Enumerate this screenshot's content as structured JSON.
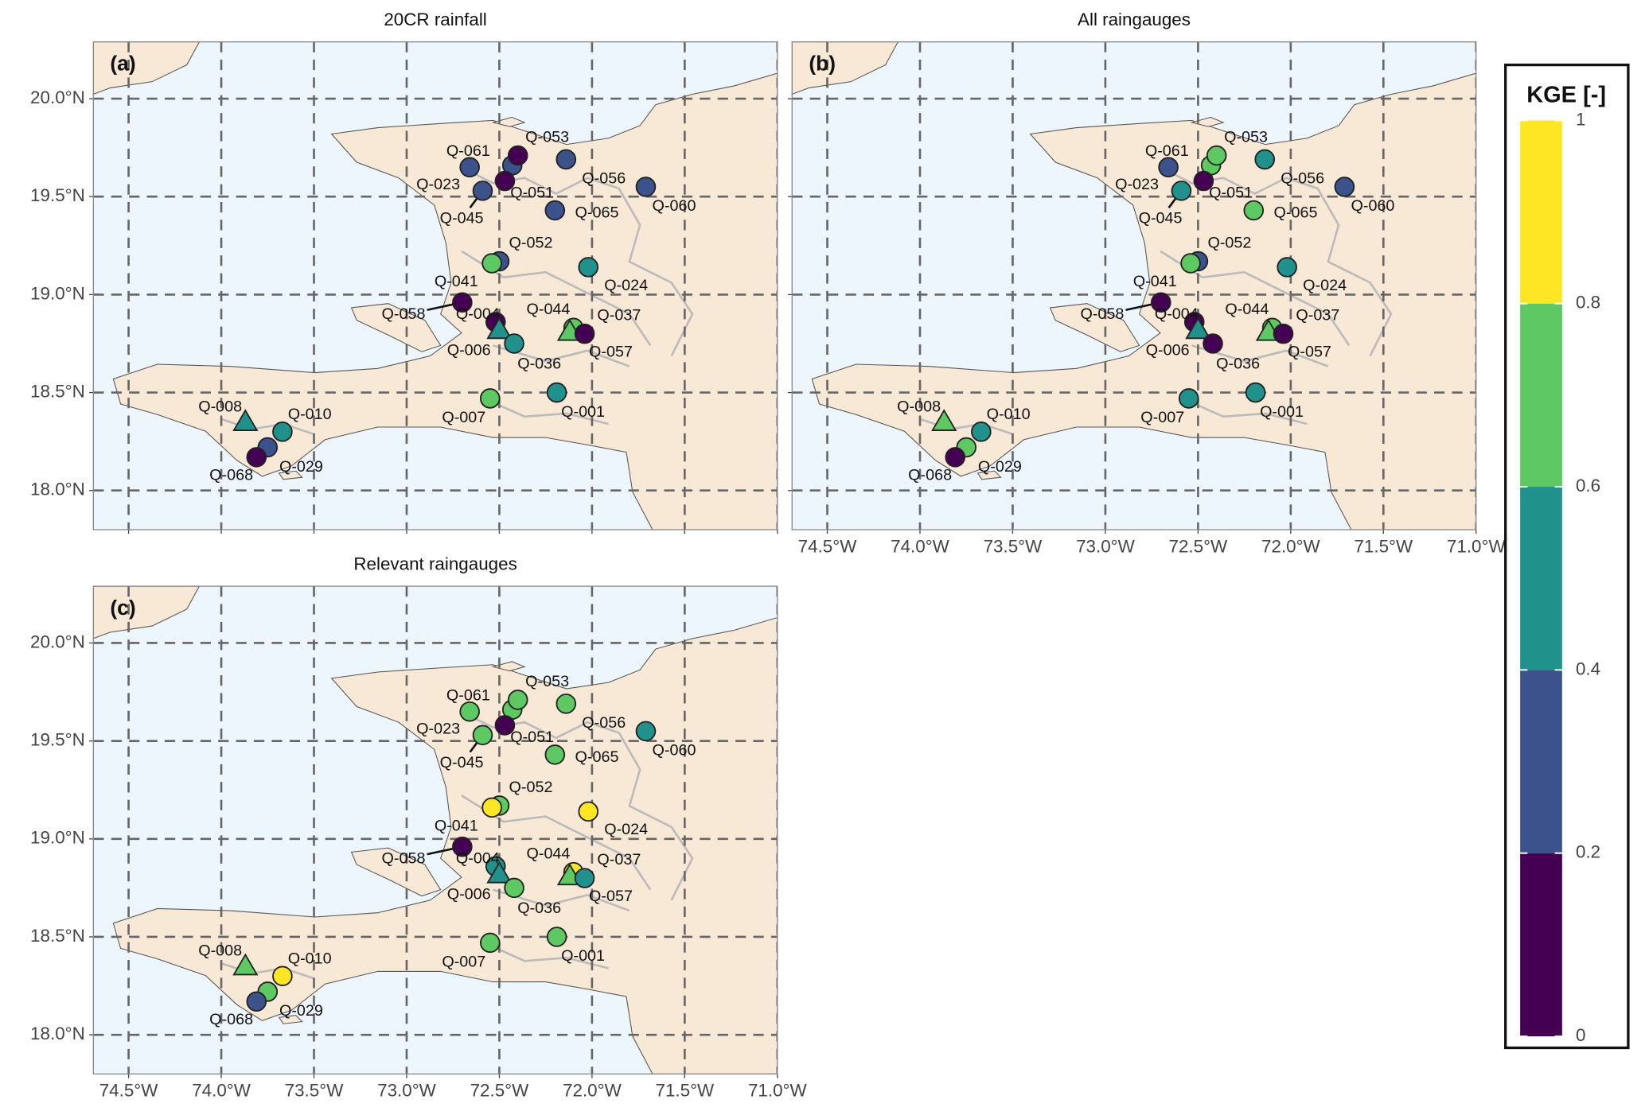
{
  "map": {
    "xlim": [
      -74.69,
      -71.0
    ],
    "ylim": [
      17.8,
      20.29
    ],
    "xticks": [
      {
        "value": -74.5,
        "label": "74.5°W"
      },
      {
        "value": -74.0,
        "label": "74.0°W"
      },
      {
        "value": -73.5,
        "label": "73.5°W"
      },
      {
        "value": -73.0,
        "label": "73.0°W"
      },
      {
        "value": -72.5,
        "label": "72.5°W"
      },
      {
        "value": -72.0,
        "label": "72.0°W"
      },
      {
        "value": -71.5,
        "label": "71.5°W"
      },
      {
        "value": -71.0,
        "label": "71.0°W"
      }
    ],
    "yticks": [
      {
        "value": 18.0,
        "label": "18.0°N"
      },
      {
        "value": 18.5,
        "label": "18.5°N"
      },
      {
        "value": 19.0,
        "label": "19.0°N"
      },
      {
        "value": 19.5,
        "label": "19.5°N"
      },
      {
        "value": 20.0,
        "label": "20.0°N"
      }
    ],
    "grid": true
  },
  "stations": [
    {
      "label": "Q-061",
      "lon": -72.43,
      "lat": 19.66,
      "marker": "circle"
    },
    {
      "label": "Q-023",
      "lon": -72.66,
      "lat": 19.65,
      "marker": "circle"
    },
    {
      "label": "Q-053",
      "lon": -72.4,
      "lat": 19.71,
      "marker": "circle"
    },
    {
      "label": "Q-051",
      "lon": -72.47,
      "lat": 19.58,
      "marker": "circle"
    },
    {
      "label": "Q-056",
      "lon": -72.14,
      "lat": 19.69,
      "marker": "circle"
    },
    {
      "label": "Q-060",
      "lon": -71.71,
      "lat": 19.55,
      "marker": "circle"
    },
    {
      "label": "Q-045",
      "lon": -72.59,
      "lat": 19.53,
      "marker": "circle"
    },
    {
      "label": "Q-065",
      "lon": -72.2,
      "lat": 19.43,
      "marker": "circle"
    },
    {
      "label": "Q-052",
      "lon": -72.5,
      "lat": 19.17,
      "marker": "circle"
    },
    {
      "label": "Q-041",
      "lon": -72.54,
      "lat": 19.16,
      "marker": "circle"
    },
    {
      "label": "Q-024",
      "lon": -72.02,
      "lat": 19.14,
      "marker": "circle"
    },
    {
      "label": "Q-058",
      "lon": -72.7,
      "lat": 18.96,
      "marker": "circle"
    },
    {
      "label": "Q-004",
      "lon": -72.52,
      "lat": 18.86,
      "marker": "circle"
    },
    {
      "label": "Q-006",
      "lon": -72.5,
      "lat": 18.82,
      "marker": "triangle"
    },
    {
      "label": "Q-044",
      "lon": -72.1,
      "lat": 18.83,
      "marker": "circle"
    },
    {
      "label": "Q-037",
      "lon": -72.12,
      "lat": 18.81,
      "marker": "triangle"
    },
    {
      "label": "Q-057",
      "lon": -72.04,
      "lat": 18.8,
      "marker": "circle"
    },
    {
      "label": "Q-036",
      "lon": -72.42,
      "lat": 18.75,
      "marker": "circle"
    },
    {
      "label": "Q-007",
      "lon": -72.55,
      "lat": 18.47,
      "marker": "circle"
    },
    {
      "label": "Q-001",
      "lon": -72.19,
      "lat": 18.5,
      "marker": "circle"
    },
    {
      "label": "Q-008",
      "lon": -73.87,
      "lat": 18.35,
      "marker": "triangle"
    },
    {
      "label": "Q-010",
      "lon": -73.67,
      "lat": 18.3,
      "marker": "circle"
    },
    {
      "label": "Q-029",
      "lon": -73.75,
      "lat": 18.22,
      "marker": "circle"
    },
    {
      "label": "Q-068",
      "lon": -73.81,
      "lat": 18.17,
      "marker": "circle"
    }
  ],
  "panels": [
    {
      "tag": "(a)",
      "title": "20CR rainfall",
      "kge": [
        0.3,
        0.3,
        0.1,
        0.1,
        0.3,
        0.3,
        0.3,
        0.3,
        0.3,
        0.7,
        0.5,
        0.1,
        0.1,
        0.5,
        0.7,
        0.7,
        0.1,
        0.5,
        0.7,
        0.5,
        0.5,
        0.5,
        0.3,
        0.1
      ]
    },
    {
      "tag": "(b)",
      "title": "All raingauges",
      "kge": [
        0.7,
        0.3,
        0.7,
        0.1,
        0.5,
        0.3,
        0.5,
        0.7,
        0.3,
        0.7,
        0.5,
        0.1,
        0.1,
        0.5,
        0.7,
        0.7,
        0.1,
        0.1,
        0.5,
        0.5,
        0.7,
        0.5,
        0.7,
        0.1
      ]
    },
    {
      "tag": "(c)",
      "title": "Relevant raingauges",
      "kge": [
        0.7,
        0.7,
        0.7,
        0.1,
        0.7,
        0.5,
        0.7,
        0.7,
        0.7,
        0.9,
        0.9,
        0.1,
        0.5,
        0.5,
        0.9,
        0.7,
        0.5,
        0.7,
        0.7,
        0.7,
        0.7,
        0.9,
        0.7,
        0.3
      ]
    }
  ],
  "colorbar": {
    "title": "KGE [-]",
    "ticks": [
      0,
      0.2,
      0.4,
      0.6,
      0.8,
      1
    ],
    "colors": [
      "#440154",
      "#3b528b",
      "#21918c",
      "#5ec962",
      "#fde725"
    ]
  }
}
